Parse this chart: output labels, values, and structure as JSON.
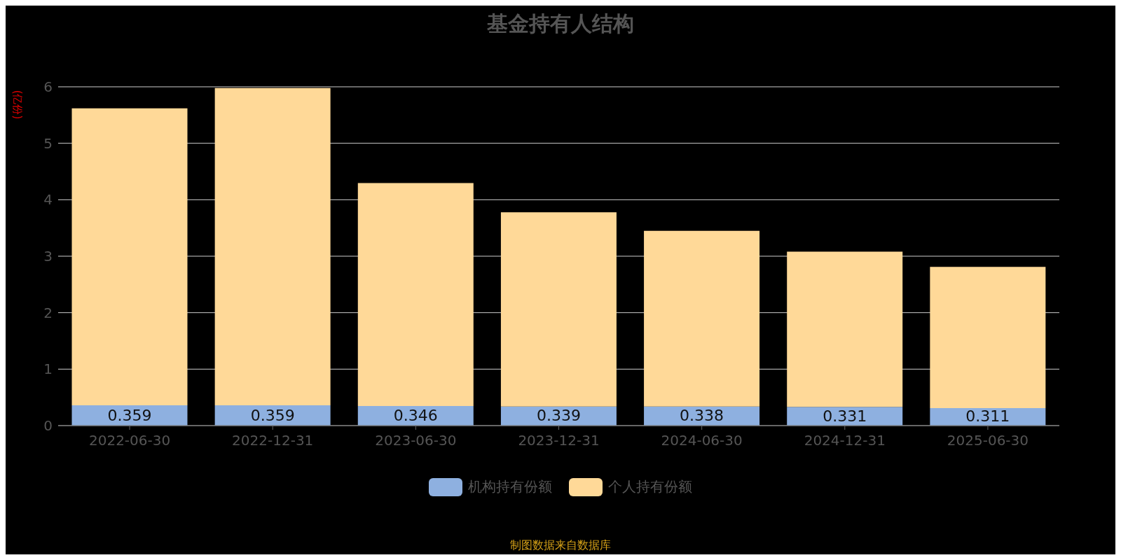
{
  "chart_data": {
    "type": "bar",
    "title": "基金持有人结构",
    "ylabel": "(亿份)",
    "stacked": true,
    "categories": [
      "2022-06-30",
      "2022-12-31",
      "2023-06-30",
      "2023-12-31",
      "2024-06-30",
      "2024-12-31",
      "2025-06-30"
    ],
    "series": [
      {
        "name": "机构持有份额",
        "color": "#8eb0e0",
        "values": [
          0.359,
          0.359,
          0.346,
          0.339,
          0.338,
          0.331,
          0.311
        ],
        "value_labels": [
          "0.359",
          "0.359",
          "0.346",
          "0.339",
          "0.338",
          "0.331",
          "0.311"
        ]
      },
      {
        "name": "个人持有份额",
        "color": "#ffd998",
        "values": [
          5.26,
          5.62,
          3.95,
          3.44,
          3.11,
          2.75,
          2.5
        ]
      }
    ],
    "ylim": [
      0,
      6
    ],
    "yticks": [
      0,
      1,
      2,
      3,
      4,
      5,
      6
    ],
    "grid": "y",
    "legend": "bottom",
    "annotations": [
      "制图数据来自数据库"
    ]
  }
}
